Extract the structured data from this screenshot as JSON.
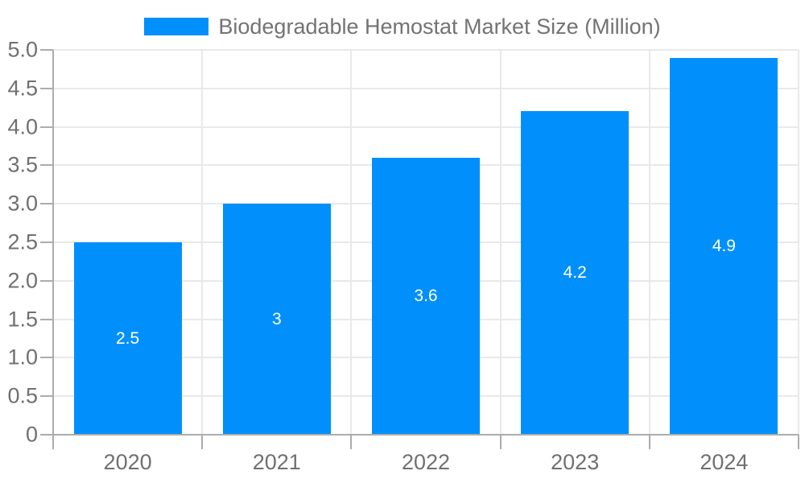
{
  "chart_data": {
    "type": "bar",
    "title": "Biodegradable Hemostat Market Size (Million)",
    "categories": [
      "2020",
      "2021",
      "2022",
      "2023",
      "2024"
    ],
    "values": [
      2.5,
      3,
      3.6,
      4.2,
      4.9
    ],
    "value_labels": [
      "2.5",
      "3",
      "3.6",
      "4.2",
      "4.9"
    ],
    "xlabel": "",
    "ylabel": "",
    "ylim": [
      0,
      5
    ],
    "ytick_step": 0.5,
    "ytick_labels": [
      "0",
      "0.5",
      "1.0",
      "1.5",
      "2.0",
      "2.5",
      "3.0",
      "3.5",
      "4.0",
      "4.5",
      "5.0"
    ],
    "grid": true,
    "legend_position": "top",
    "colors": {
      "bar": "#0190FB",
      "bar_label": "#FFFFFF",
      "axis_text": "#707070",
      "axis_line": "#ACACAC",
      "gridline": "#E9E9E9",
      "legend_text": "#737373"
    }
  }
}
